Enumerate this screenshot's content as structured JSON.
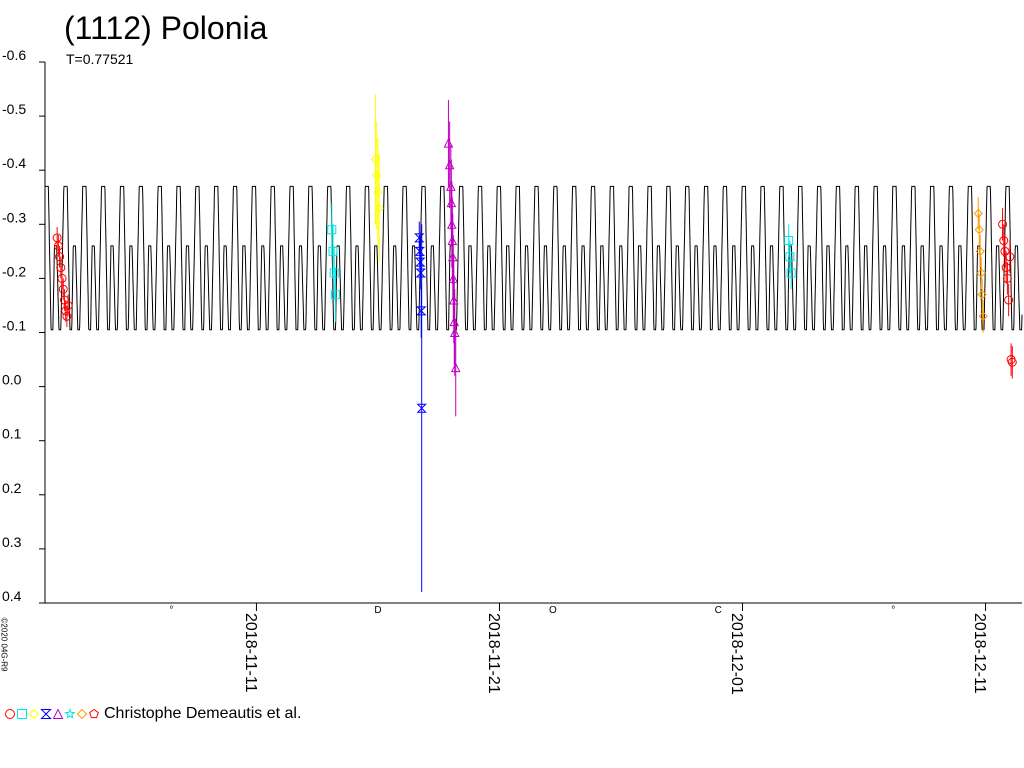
{
  "chart_data": {
    "type": "scatter",
    "title": "(1112) Polonia",
    "subtitle": "T=0.77521",
    "credit": "Christophe Demeautis et al.",
    "copyright": "©2020 04G-R9",
    "y_inverted": true,
    "ylim": [
      -0.6,
      0.4
    ],
    "y_ticks": [
      "-0.6",
      "-0.5",
      "-0.4",
      "-0.3",
      "-0.2",
      "-0.1",
      "0.0",
      "0.1",
      "0.2",
      "0.3",
      "0.4"
    ],
    "y_tick_values": [
      -0.6,
      -0.5,
      -0.4,
      -0.3,
      -0.2,
      -0.1,
      0.0,
      0.1,
      0.2,
      0.3,
      0.4
    ],
    "x_ticks": [
      "2018-11-11",
      "2018-11-21",
      "2018-12-01",
      "2018-12-11"
    ],
    "x_tick_days": [
      11,
      21,
      31,
      41
    ],
    "xlim_days": [
      2.3,
      42.5
    ],
    "moon_phases": [
      {
        "day": 7.5,
        "symbol": "°"
      },
      {
        "day": 16.0,
        "symbol": "D"
      },
      {
        "day": 23.2,
        "symbol": "O"
      },
      {
        "day": 30.0,
        "symbol": "C"
      },
      {
        "day": 37.2,
        "symbol": "°"
      }
    ],
    "model": {
      "name": "lightcurve model",
      "period_days": 0.77521,
      "mean": -0.235,
      "upper_peak": -0.37,
      "lower_min": -0.105,
      "secondary_level": -0.26,
      "color": "#000000"
    },
    "series": [
      {
        "symbol": "circle",
        "color": "#ff0000",
        "points": [
          {
            "day": 2.8,
            "y": -0.275,
            "err": 0.02
          },
          {
            "day": 2.85,
            "y": -0.26,
            "err": 0.02
          },
          {
            "day": 2.9,
            "y": -0.24,
            "err": 0.02
          },
          {
            "day": 2.95,
            "y": -0.22,
            "err": 0.02
          },
          {
            "day": 3.0,
            "y": -0.2,
            "err": 0.02
          },
          {
            "day": 3.05,
            "y": -0.18,
            "err": 0.02
          },
          {
            "day": 3.1,
            "y": -0.16,
            "err": 0.02
          },
          {
            "day": 3.15,
            "y": -0.14,
            "err": 0.02
          },
          {
            "day": 3.2,
            "y": -0.13,
            "err": 0.02
          },
          {
            "day": 3.25,
            "y": -0.15,
            "err": 0.02
          },
          {
            "day": 41.7,
            "y": -0.3,
            "err": 0.03
          },
          {
            "day": 41.75,
            "y": -0.27,
            "err": 0.03
          },
          {
            "day": 41.8,
            "y": -0.25,
            "err": 0.03
          },
          {
            "day": 41.85,
            "y": -0.22,
            "err": 0.03
          },
          {
            "day": 41.9,
            "y": -0.2,
            "err": 0.03
          },
          {
            "day": 41.95,
            "y": -0.16,
            "err": 0.03
          },
          {
            "day": 42.0,
            "y": -0.24,
            "err": 0.03
          },
          {
            "day": 42.05,
            "y": -0.05,
            "err": 0.03
          },
          {
            "day": 42.1,
            "y": -0.045,
            "err": 0.03
          }
        ]
      },
      {
        "symbol": "square",
        "color": "#00e6e6",
        "points": [
          {
            "day": 14.1,
            "y": -0.29,
            "err": 0.05
          },
          {
            "day": 14.15,
            "y": -0.25,
            "err": 0.05
          },
          {
            "day": 14.2,
            "y": -0.21,
            "err": 0.05
          },
          {
            "day": 14.25,
            "y": -0.17,
            "err": 0.05
          },
          {
            "day": 32.9,
            "y": -0.27,
            "err": 0.03
          },
          {
            "day": 32.95,
            "y": -0.24,
            "err": 0.03
          },
          {
            "day": 33.0,
            "y": -0.21,
            "err": 0.03
          }
        ]
      },
      {
        "symbol": "diamond",
        "color": "#ffff00",
        "points": [
          {
            "day": 15.9,
            "y": -0.42,
            "err": 0.12
          },
          {
            "day": 15.95,
            "y": -0.39,
            "err": 0.1
          },
          {
            "day": 16.0,
            "y": -0.36,
            "err": 0.1
          },
          {
            "day": 16.05,
            "y": -0.33,
            "err": 0.1
          }
        ]
      },
      {
        "symbol": "hourglass",
        "color": "#0000ff",
        "points": [
          {
            "day": 17.7,
            "y": -0.275,
            "err": 0.03
          },
          {
            "day": 17.72,
            "y": -0.25,
            "err": 0.03
          },
          {
            "day": 17.74,
            "y": -0.23,
            "err": 0.03
          },
          {
            "day": 17.76,
            "y": -0.21,
            "err": 0.03
          },
          {
            "day": 17.78,
            "y": -0.14,
            "err": 0.05
          },
          {
            "day": 17.8,
            "y": 0.04,
            "err": 0.34
          }
        ]
      },
      {
        "symbol": "triangle",
        "color": "#c000c0",
        "points": [
          {
            "day": 18.9,
            "y": -0.45,
            "err": 0.08
          },
          {
            "day": 18.95,
            "y": -0.41,
            "err": 0.08
          },
          {
            "day": 19.0,
            "y": -0.37,
            "err": 0.08
          },
          {
            "day": 19.02,
            "y": -0.34,
            "err": 0.08
          },
          {
            "day": 19.04,
            "y": -0.3,
            "err": 0.08
          },
          {
            "day": 19.06,
            "y": -0.27,
            "err": 0.08
          },
          {
            "day": 19.08,
            "y": -0.24,
            "err": 0.08
          },
          {
            "day": 19.1,
            "y": -0.2,
            "err": 0.08
          },
          {
            "day": 19.12,
            "y": -0.16,
            "err": 0.08
          },
          {
            "day": 19.14,
            "y": -0.12,
            "err": 0.08
          },
          {
            "day": 19.16,
            "y": -0.1,
            "err": 0.08
          },
          {
            "day": 19.2,
            "y": -0.035,
            "err": 0.09
          }
        ]
      },
      {
        "symbol": "diamond",
        "color": "#ff9900",
        "points": [
          {
            "day": 40.7,
            "y": -0.32,
            "err": 0.03
          },
          {
            "day": 40.74,
            "y": -0.29,
            "err": 0.03
          },
          {
            "day": 40.78,
            "y": -0.25,
            "err": 0.03
          },
          {
            "day": 40.82,
            "y": -0.21,
            "err": 0.03
          },
          {
            "day": 40.86,
            "y": -0.17,
            "err": 0.03
          },
          {
            "day": 40.9,
            "y": -0.13,
            "err": 0.03
          }
        ]
      }
    ],
    "legend_symbols": [
      {
        "symbol": "circle",
        "color": "#ff0000"
      },
      {
        "symbol": "square",
        "color": "#00e6e6"
      },
      {
        "symbol": "diamond",
        "color": "#ffff00"
      },
      {
        "symbol": "hourglass",
        "color": "#0000ff"
      },
      {
        "symbol": "triangle",
        "color": "#c000c0"
      },
      {
        "symbol": "star",
        "color": "#00e6e6"
      },
      {
        "symbol": "diamond",
        "color": "#ff9900"
      },
      {
        "symbol": "pentagon",
        "color": "#ff0000"
      }
    ]
  }
}
